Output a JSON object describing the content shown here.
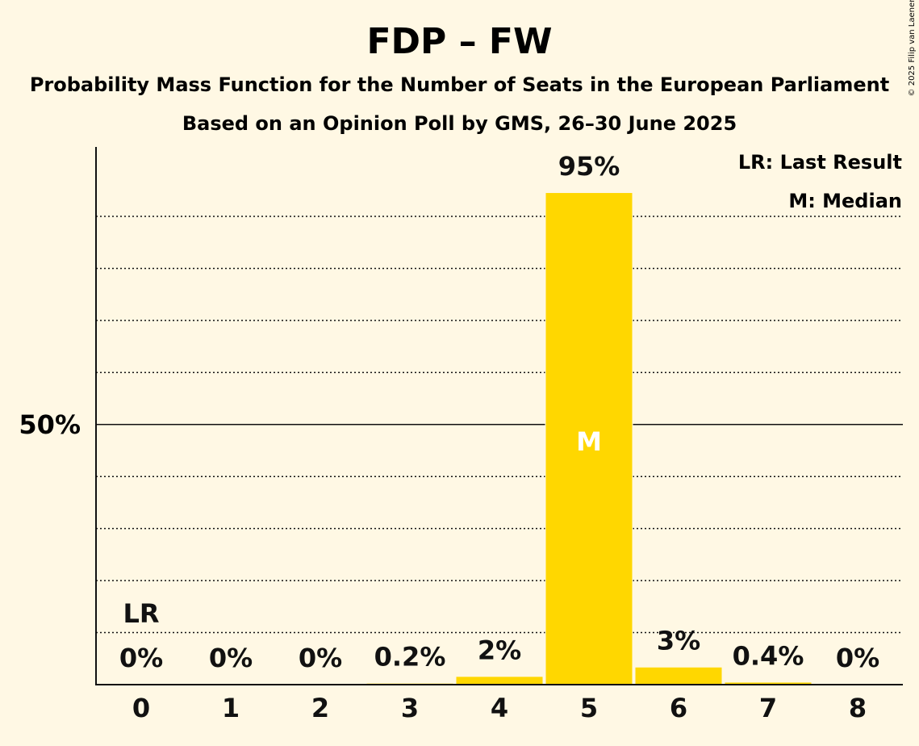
{
  "copyright": "© 2025 Filip van Laenen",
  "colors": {
    "background": "#FFF8E4",
    "bar": "#FFD700",
    "text": "#111111",
    "median_label": "#FFFFFF"
  },
  "chart_data": {
    "type": "bar",
    "title": "FDP – FW",
    "subtitle": "Probability Mass Function for the Number of Seats in the European Parliament",
    "subtitle2": "Based on an Opinion Poll by GMS, 26–30 June 2025",
    "categories": [
      "0",
      "1",
      "2",
      "3",
      "4",
      "5",
      "6",
      "7",
      "8"
    ],
    "values": [
      0,
      0,
      0,
      0.2,
      1.5,
      94.5,
      3.3,
      0.4,
      0
    ],
    "data_labels": [
      "0%",
      "0%",
      "0%",
      "0.2%",
      "2%",
      "95%",
      "3%",
      "0.4%",
      "0%"
    ],
    "ylim": [
      0,
      103
    ],
    "y_tick_label": "50%",
    "y_tick_value": 50,
    "gridlines": [
      10,
      20,
      30,
      40,
      60,
      70,
      80,
      90
    ],
    "last_result": {
      "index": 0,
      "label": "LR"
    },
    "median": {
      "index": 5,
      "label": "M"
    },
    "legend": [
      "LR: Last Result",
      "M: Median"
    ],
    "legend_position": "top-right"
  }
}
